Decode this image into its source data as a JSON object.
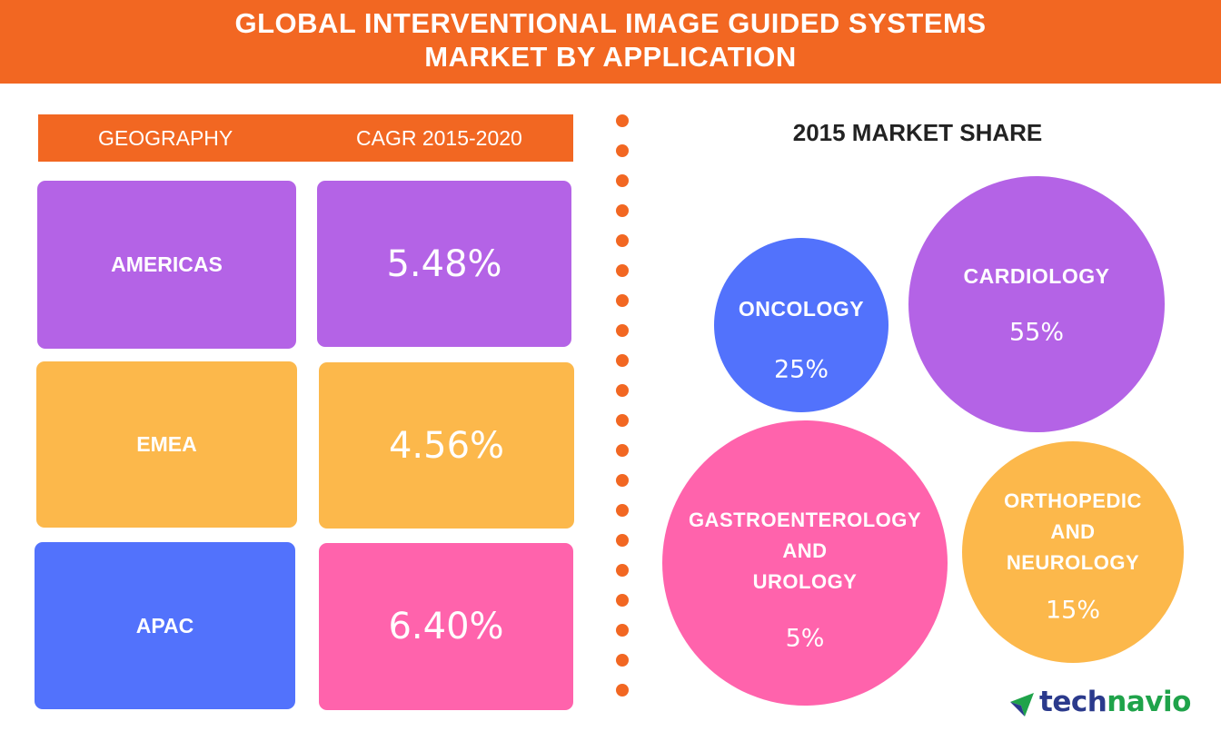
{
  "header": {
    "title_line1": "GLOBAL INTERVENTIONAL IMAGE GUIDED SYSTEMS",
    "title_line2": "MARKET BY APPLICATION"
  },
  "table": {
    "col_geography": "GEOGRAPHY",
    "col_cagr": "CAGR 2015-2020",
    "rows": [
      {
        "region": "AMERICAS",
        "cagr": "5.48%",
        "region_color": "#B463E6",
        "cagr_color": "#B463E6"
      },
      {
        "region": "EMEA",
        "cagr": "4.56%",
        "region_color": "#FCB84B",
        "cagr_color": "#FCB84B"
      },
      {
        "region": "APAC",
        "cagr": "6.40%",
        "region_color": "#5272FC",
        "cagr_color": "#FF63AC"
      }
    ]
  },
  "market_share_title": "2015 MARKET SHARE",
  "chart_data": [
    {
      "type": "table",
      "columns": [
        "GEOGRAPHY",
        "CAGR 2015-2020"
      ],
      "categories": [
        "AMERICAS",
        "EMEA",
        "APAC"
      ],
      "values": [
        5.48,
        4.56,
        6.4
      ],
      "labels": [
        "5.48%",
        "4.56%",
        "6.40%"
      ]
    },
    {
      "type": "bubble",
      "title": "2015 MARKET SHARE",
      "categories": [
        "ONCOLOGY",
        "CARDIOLOGY",
        "GASTROENTEROLOGY AND UROLOGY",
        "ORTHOPEDIC AND NEUROLOGY"
      ],
      "values": [
        25,
        55,
        5,
        15
      ],
      "bubbles": [
        {
          "lines": [
            "ONCOLOGY"
          ],
          "value_label": "25%",
          "value": 25,
          "color": "#5272FC"
        },
        {
          "lines": [
            "CARDIOLOGY"
          ],
          "value_label": "55%",
          "value": 55,
          "color": "#B463E6"
        },
        {
          "lines": [
            "GASTROENTEROLOGY",
            "AND",
            "UROLOGY"
          ],
          "value_label": "5%",
          "value": 5,
          "color": "#FF63AC"
        },
        {
          "lines": [
            "ORTHOPEDIC",
            "AND",
            "NEUROLOGY"
          ],
          "value_label": "15%",
          "value": 15,
          "color": "#FCB84B"
        }
      ]
    }
  ],
  "logo": {
    "text_main": "tech",
    "text_highlight": "navio",
    "icon": "technavio-arrow-icon",
    "colors": {
      "main": "#2B3A8C",
      "highlight": "#1FA34A"
    }
  },
  "colors": {
    "accent": "#F26722"
  }
}
